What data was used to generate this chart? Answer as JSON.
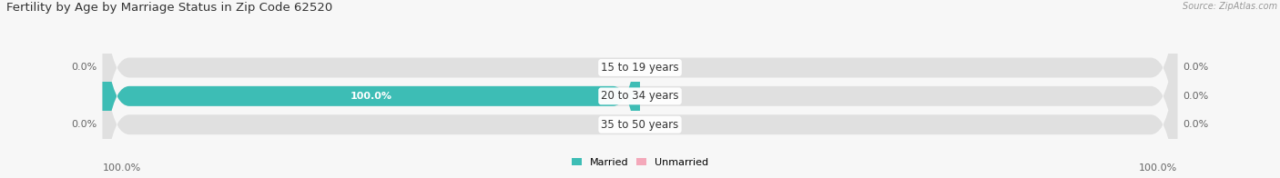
{
  "title": "Fertility by Age by Marriage Status in Zip Code 62520",
  "source": "Source: ZipAtlas.com",
  "categories": [
    "15 to 19 years",
    "20 to 34 years",
    "35 to 50 years"
  ],
  "married_values": [
    0.0,
    100.0,
    0.0
  ],
  "unmarried_values": [
    0.0,
    0.0,
    0.0
  ],
  "married_color": "#3dbdb5",
  "unmarried_color": "#f4a8ba",
  "bar_bg_color": "#e0e0e0",
  "row_bg_odd": "#f2f2f2",
  "row_bg_even": "#e6e6e6",
  "title_fontsize": 9.5,
  "label_fontsize": 8.0,
  "category_fontsize": 8.5,
  "axis_max": 100.0,
  "bottom_left_label": "100.0%",
  "bottom_right_label": "100.0%",
  "fig_bg": "#f7f7f7"
}
